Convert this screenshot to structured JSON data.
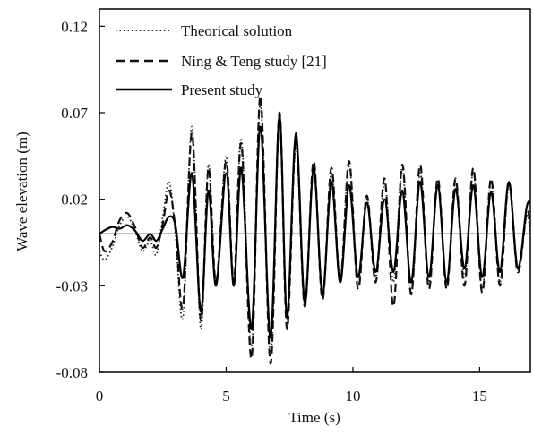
{
  "chart_data": {
    "type": "line",
    "title": "",
    "xlabel": "Time (s)",
    "ylabel": "Wave elevation (m)",
    "xlim": [
      0,
      17
    ],
    "ylim": [
      -0.08,
      0.13
    ],
    "x_ticks": [
      0,
      5,
      10,
      15
    ],
    "y_ticks": [
      -0.08,
      -0.03,
      0.02,
      0.07,
      0.12
    ],
    "x_tick_labels": [
      "0",
      "5",
      "10",
      "15"
    ],
    "y_tick_labels": [
      "-0.08",
      "-0.03",
      "0.02",
      "0.07",
      "0.12"
    ],
    "grid": false,
    "legend_position": "top-left",
    "reference_line_y": 0,
    "series": [
      {
        "name": "Theorical solution",
        "style": "dotted",
        "color": "#222222",
        "x": [
          0,
          0.2,
          0.5,
          0.8,
          1.1,
          1.4,
          1.7,
          2.0,
          2.25,
          2.5,
          2.75,
          3.0,
          3.3,
          3.65,
          4.0,
          4.3,
          4.6,
          5.0,
          5.3,
          5.6,
          6.0,
          6.35,
          6.75,
          7.1,
          7.4,
          7.75,
          8.1,
          8.45,
          8.8,
          9.15,
          9.5,
          9.85,
          10.2,
          10.55,
          10.9,
          11.25,
          11.6,
          11.95,
          12.3,
          12.65,
          13.0,
          13.35,
          13.7,
          14.05,
          14.4,
          14.75,
          15.1,
          15.45,
          15.8,
          16.15,
          16.5,
          16.85,
          17.0
        ],
        "y": [
          -0.01,
          -0.015,
          -0.008,
          0.005,
          0.01,
          0.002,
          -0.01,
          -0.004,
          -0.012,
          0.01,
          0.03,
          0.0,
          -0.048,
          0.062,
          -0.055,
          0.04,
          -0.03,
          0.045,
          -0.03,
          0.055,
          -0.065,
          0.075,
          -0.07,
          0.065,
          -0.05,
          0.05,
          -0.04,
          0.04,
          -0.035,
          0.035,
          -0.025,
          0.04,
          -0.03,
          0.02,
          -0.025,
          0.03,
          -0.028,
          0.038,
          -0.035,
          0.035,
          -0.028,
          0.03,
          -0.03,
          0.03,
          -0.025,
          0.036,
          -0.032,
          0.03,
          -0.028,
          0.028,
          -0.02,
          0.01,
          0.0
        ]
      },
      {
        "name": "Ning & Teng study [21]",
        "style": "dashed",
        "color": "#111111",
        "x": [
          0,
          0.2,
          0.5,
          0.8,
          1.1,
          1.4,
          1.7,
          2.0,
          2.25,
          2.5,
          2.75,
          3.0,
          3.3,
          3.65,
          4.0,
          4.3,
          4.6,
          5.0,
          5.3,
          5.6,
          6.0,
          6.35,
          6.75,
          7.1,
          7.4,
          7.75,
          8.1,
          8.45,
          8.8,
          9.15,
          9.5,
          9.85,
          10.2,
          10.55,
          10.9,
          11.25,
          11.6,
          11.95,
          12.3,
          12.65,
          13.0,
          13.35,
          13.7,
          14.05,
          14.4,
          14.75,
          15.1,
          15.45,
          15.8,
          16.15,
          16.5,
          16.85,
          17.0
        ],
        "y": [
          0.0,
          -0.01,
          -0.005,
          0.008,
          0.012,
          0.004,
          -0.008,
          -0.002,
          -0.008,
          0.006,
          0.025,
          0.003,
          -0.042,
          0.058,
          -0.05,
          0.038,
          -0.028,
          0.042,
          -0.028,
          0.052,
          -0.072,
          0.08,
          -0.075,
          0.07,
          -0.055,
          0.055,
          -0.042,
          0.042,
          -0.038,
          0.038,
          -0.028,
          0.042,
          -0.032,
          0.022,
          -0.028,
          0.032,
          -0.042,
          0.04,
          -0.035,
          0.04,
          -0.032,
          0.032,
          -0.032,
          0.032,
          -0.03,
          0.038,
          -0.034,
          0.032,
          -0.03,
          0.03,
          -0.022,
          0.012,
          0.004
        ]
      },
      {
        "name": "Present study",
        "style": "solid",
        "color": "#000000",
        "x": [
          0,
          0.2,
          0.5,
          0.8,
          1.1,
          1.4,
          1.7,
          2.0,
          2.25,
          2.5,
          2.75,
          3.0,
          3.3,
          3.65,
          4.0,
          4.3,
          4.6,
          5.0,
          5.3,
          5.6,
          6.0,
          6.35,
          6.75,
          7.1,
          7.4,
          7.75,
          8.1,
          8.45,
          8.8,
          9.15,
          9.5,
          9.85,
          10.2,
          10.55,
          10.9,
          11.25,
          11.6,
          11.95,
          12.3,
          12.65,
          13.0,
          13.35,
          13.7,
          14.05,
          14.4,
          14.75,
          15.1,
          15.45,
          15.8,
          16.15,
          16.5,
          16.85,
          17.0
        ],
        "y": [
          0.0,
          0.002,
          0.004,
          0.003,
          0.005,
          0.002,
          -0.004,
          0.0,
          -0.004,
          0.003,
          0.01,
          0.005,
          -0.025,
          0.035,
          -0.045,
          0.025,
          -0.03,
          0.035,
          -0.03,
          0.038,
          -0.055,
          0.062,
          -0.06,
          0.068,
          -0.048,
          0.058,
          -0.04,
          0.038,
          -0.035,
          0.03,
          -0.028,
          0.028,
          -0.025,
          0.018,
          -0.022,
          0.02,
          -0.022,
          0.025,
          -0.028,
          0.03,
          -0.025,
          0.028,
          -0.028,
          0.026,
          -0.02,
          0.028,
          -0.025,
          0.024,
          -0.022,
          0.03,
          -0.02,
          0.015,
          0.018
        ]
      }
    ]
  }
}
